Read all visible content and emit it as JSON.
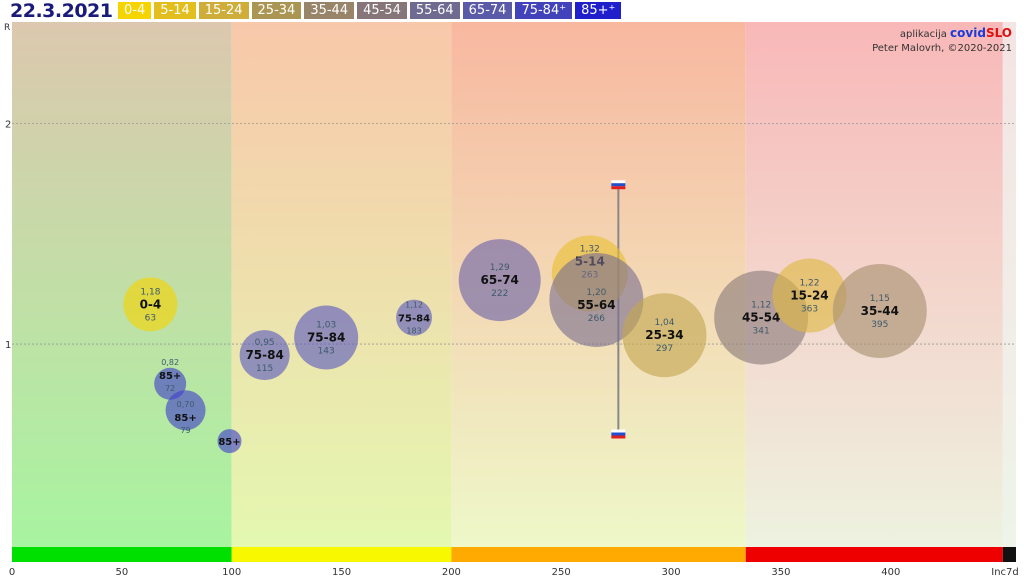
{
  "header": {
    "date": "22.3.2021"
  },
  "credits": {
    "app_prefix": "aplikacija",
    "app_name_a": "covid",
    "app_name_b": "SLO",
    "author": "Peter Malovrh, ©2020-2021"
  },
  "legend": [
    {
      "label": "0-4",
      "color": "#f5d400"
    },
    {
      "label": "5-14",
      "color": "#e2bf1e"
    },
    {
      "label": "15-24",
      "color": "#cfad3a"
    },
    {
      "label": "25-34",
      "color": "#ab9552"
    },
    {
      "label": "35-44",
      "color": "#988468"
    },
    {
      "label": "45-54",
      "color": "#86767a"
    },
    {
      "label": "55-64",
      "color": "#6f6a90"
    },
    {
      "label": "65-74",
      "color": "#5b5aa8"
    },
    {
      "label": "75-84⁺",
      "color": "#4242bb"
    },
    {
      "label": "85+⁺",
      "color": "#1f1fcc"
    }
  ],
  "chart_data": {
    "type": "scatter",
    "xlabel": "Inc7d",
    "ylabel": "R",
    "xlim": [
      0,
      457
    ],
    "ylim": [
      0.08,
      2.46
    ],
    "xticks": [
      0,
      50,
      100,
      150,
      200,
      250,
      300,
      350,
      400
    ],
    "yticks": [
      1,
      2
    ],
    "grid": "horizontal dashed at R=1 and R=2",
    "zones": [
      {
        "from": 0,
        "to": 100,
        "color": "#00e000"
      },
      {
        "from": 100,
        "to": 200,
        "color": "#f8f800"
      },
      {
        "from": 200,
        "to": 334,
        "color": "#ffaa00"
      },
      {
        "from": 334,
        "to": 451,
        "color": "#ee0000"
      },
      {
        "from": 451,
        "to": 457,
        "color": "#111111"
      }
    ],
    "points": [
      {
        "group": "0-4",
        "x": 63,
        "r": 1.18,
        "r_label": "1,18",
        "inc_label": "63",
        "color": "#f5d400"
      },
      {
        "group": "85+",
        "x": 72,
        "r": 0.82,
        "r_label": "0,82",
        "inc_label": "72",
        "color": "#4040c8"
      },
      {
        "group": "85+",
        "x": 79,
        "r": 0.7,
        "r_label": "0,70",
        "inc_label": "79",
        "color": "#4040c8"
      },
      {
        "group": "85+",
        "x": 99,
        "r": 0.56,
        "r_label": "",
        "inc_label": "",
        "color": "#4040c8"
      },
      {
        "group": "75-84",
        "x": 115,
        "r": 0.95,
        "r_label": "0,95",
        "inc_label": "115",
        "color": "#5a5ac0"
      },
      {
        "group": "75-84",
        "x": 143,
        "r": 1.03,
        "r_label": "1,03",
        "inc_label": "143",
        "color": "#5a5ac0"
      },
      {
        "group": "75-84",
        "x": 183,
        "r": 1.12,
        "r_label": "1,12",
        "inc_label": "183",
        "color": "#5a5ac0"
      },
      {
        "group": "65-74",
        "x": 222,
        "r": 1.29,
        "r_label": "1,29",
        "inc_label": "222",
        "color": "#6a62a8"
      },
      {
        "group": "5-14",
        "x": 263,
        "r": 1.32,
        "r_label": "1,32",
        "inc_label": "263",
        "color": "#e8c030"
      },
      {
        "group": "55-64",
        "x": 266,
        "r": 1.2,
        "r_label": "1,20",
        "inc_label": "266",
        "color": "#7a7090"
      },
      {
        "group": "25-34",
        "x": 297,
        "r": 1.04,
        "r_label": "1,04",
        "inc_label": "297",
        "color": "#c4a650"
      },
      {
        "group": "45-54",
        "x": 341,
        "r": 1.12,
        "r_label": "1,12",
        "inc_label": "341",
        "color": "#8a7a7a"
      },
      {
        "group": "15-24",
        "x": 363,
        "r": 1.22,
        "r_label": "1,22",
        "inc_label": "363",
        "color": "#ddb840"
      },
      {
        "group": "35-44",
        "x": 395,
        "r": 1.15,
        "r_label": "1,15",
        "inc_label": "395",
        "color": "#a89070"
      }
    ],
    "slovenia_range": {
      "x": 276,
      "r_low": 0.59,
      "r_high": 1.72
    }
  }
}
